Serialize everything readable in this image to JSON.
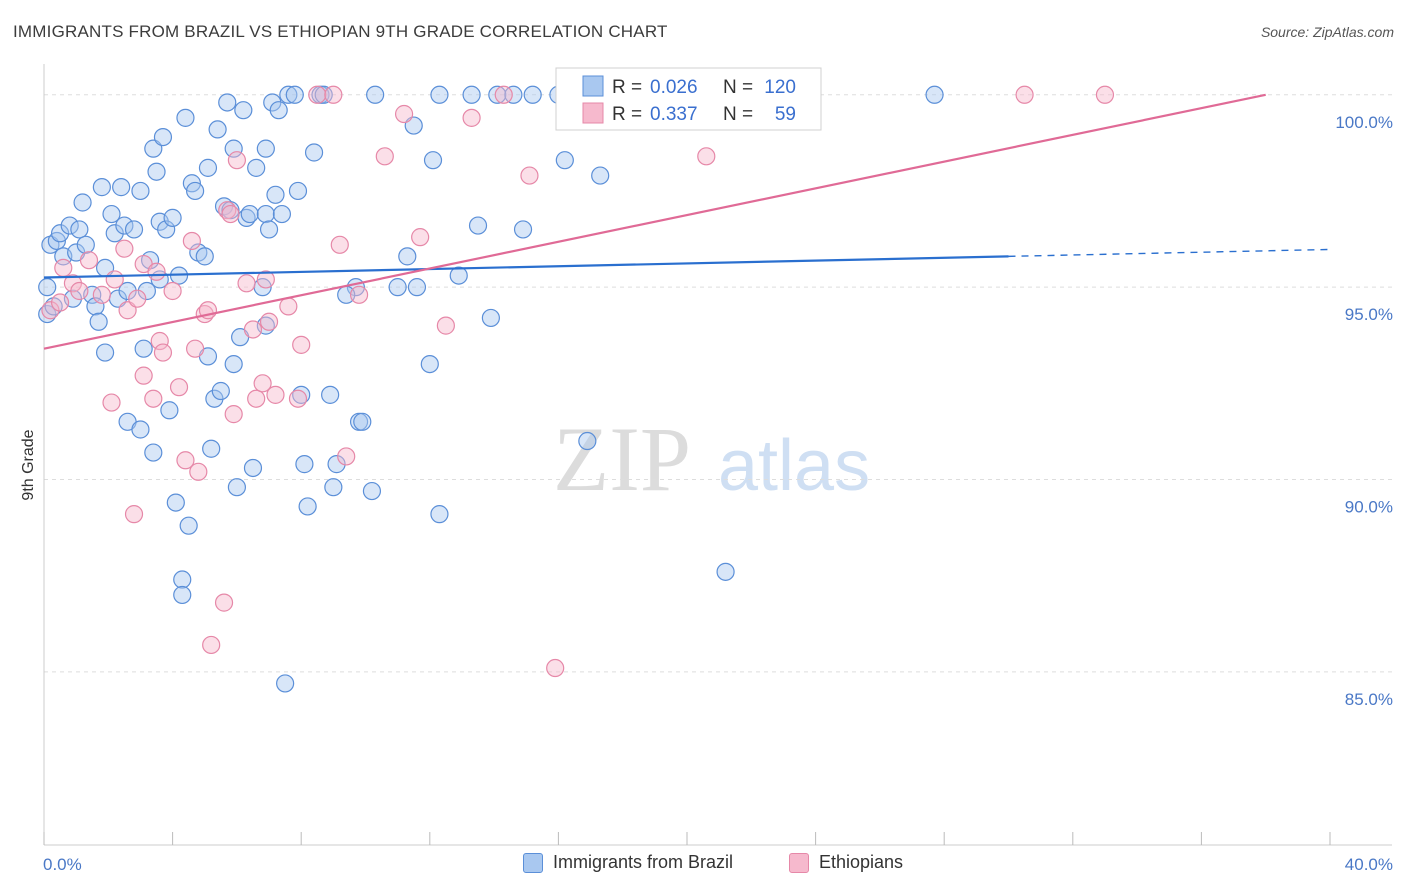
{
  "title": "IMMIGRANTS FROM BRAZIL VS ETHIOPIAN 9TH GRADE CORRELATION CHART",
  "source": "Source: ZipAtlas.com",
  "watermark": {
    "zip": "ZIP",
    "atlas": "atlas"
  },
  "legend_top": {
    "r_label": "R =",
    "n_label": "N =",
    "rows": [
      {
        "r": "0.026",
        "n": "120"
      },
      {
        "r": "0.337",
        "n": "59"
      }
    ]
  },
  "colors": {
    "blue_fill": "#a9c8f0",
    "blue_stroke": "#5b8fd8",
    "blue_line": "#2a6fcf",
    "pink_fill": "#f6b9cd",
    "pink_stroke": "#e688a8",
    "pink_line": "#e06a96",
    "value_text": "#3a6fcf",
    "grid": "#dddddd"
  },
  "chart_data": {
    "type": "scatter",
    "title": "IMMIGRANTS FROM BRAZIL VS ETHIOPIAN 9TH GRADE CORRELATION CHART",
    "xlabel": "",
    "ylabel": "9th Grade",
    "x_range": [
      0,
      40
    ],
    "y_range": [
      80.5,
      100.8
    ],
    "x_tick_labels": [
      "0.0%",
      "40.0%"
    ],
    "y_ticks": [
      85,
      90,
      95,
      100
    ],
    "y_tick_labels": [
      "85.0%",
      "90.0%",
      "95.0%",
      "100.0%"
    ],
    "grid": "horizontal dashed",
    "legend_position": "bottom",
    "series": [
      {
        "name": "Immigrants from Brazil",
        "r": 0.026,
        "n": 120,
        "trend": {
          "x": [
            0,
            30
          ],
          "y": [
            95.25,
            95.8
          ],
          "dashed_to": [
            40,
            95.98
          ]
        },
        "points": [
          [
            0.1,
            95.0
          ],
          [
            0.1,
            94.3
          ],
          [
            0.2,
            96.1
          ],
          [
            0.3,
            94.5
          ],
          [
            0.4,
            96.2
          ],
          [
            0.5,
            96.4
          ],
          [
            0.6,
            95.8
          ],
          [
            0.8,
            96.6
          ],
          [
            0.9,
            94.7
          ],
          [
            1.0,
            95.9
          ],
          [
            1.1,
            96.5
          ],
          [
            1.2,
            97.2
          ],
          [
            1.3,
            96.1
          ],
          [
            1.5,
            94.8
          ],
          [
            1.6,
            94.5
          ],
          [
            1.7,
            94.1
          ],
          [
            1.8,
            97.6
          ],
          [
            1.9,
            95.5
          ],
          [
            1.9,
            93.3
          ],
          [
            2.1,
            96.9
          ],
          [
            2.2,
            96.4
          ],
          [
            2.3,
            94.7
          ],
          [
            2.4,
            97.6
          ],
          [
            2.5,
            96.6
          ],
          [
            2.6,
            94.9
          ],
          [
            2.6,
            91.5
          ],
          [
            2.8,
            96.5
          ],
          [
            3.0,
            97.5
          ],
          [
            3.0,
            91.3
          ],
          [
            3.1,
            93.4
          ],
          [
            3.2,
            94.9
          ],
          [
            3.3,
            95.7
          ],
          [
            3.4,
            98.6
          ],
          [
            3.4,
            90.7
          ],
          [
            3.5,
            98.0
          ],
          [
            3.6,
            96.7
          ],
          [
            3.7,
            98.9
          ],
          [
            3.8,
            96.5
          ],
          [
            3.9,
            91.8
          ],
          [
            4.0,
            96.8
          ],
          [
            4.1,
            89.4
          ],
          [
            4.2,
            95.3
          ],
          [
            4.3,
            87.4
          ],
          [
            4.3,
            87.0
          ],
          [
            4.4,
            99.4
          ],
          [
            4.5,
            88.8
          ],
          [
            4.6,
            97.7
          ],
          [
            4.7,
            97.5
          ],
          [
            4.8,
            95.9
          ],
          [
            5.0,
            95.8
          ],
          [
            5.1,
            98.1
          ],
          [
            5.2,
            90.8
          ],
          [
            5.3,
            92.1
          ],
          [
            5.4,
            99.1
          ],
          [
            5.5,
            92.3
          ],
          [
            5.6,
            97.1
          ],
          [
            5.7,
            99.8
          ],
          [
            5.8,
            97.0
          ],
          [
            5.9,
            98.6
          ],
          [
            5.9,
            93.0
          ],
          [
            6.0,
            89.8
          ],
          [
            6.1,
            93.7
          ],
          [
            6.2,
            99.6
          ],
          [
            6.3,
            96.8
          ],
          [
            6.4,
            96.9
          ],
          [
            6.5,
            90.3
          ],
          [
            6.6,
            98.1
          ],
          [
            6.8,
            95.0
          ],
          [
            6.9,
            96.9
          ],
          [
            6.9,
            98.6
          ],
          [
            7.0,
            96.5
          ],
          [
            7.1,
            99.8
          ],
          [
            7.2,
            97.4
          ],
          [
            7.3,
            99.6
          ],
          [
            7.4,
            96.9
          ],
          [
            7.5,
            84.7
          ],
          [
            7.6,
            100.0
          ],
          [
            7.8,
            100.0
          ],
          [
            7.9,
            97.5
          ],
          [
            8.0,
            92.2
          ],
          [
            8.1,
            90.4
          ],
          [
            8.2,
            89.3
          ],
          [
            8.4,
            98.5
          ],
          [
            8.6,
            100.0
          ],
          [
            8.7,
            100.0
          ],
          [
            8.9,
            92.2
          ],
          [
            9.0,
            89.8
          ],
          [
            9.1,
            90.4
          ],
          [
            9.7,
            95.0
          ],
          [
            9.8,
            91.5
          ],
          [
            9.9,
            91.5
          ],
          [
            10.2,
            89.7
          ],
          [
            10.3,
            100.0
          ],
          [
            11.0,
            95.0
          ],
          [
            11.3,
            95.8
          ],
          [
            11.6,
            95.0
          ],
          [
            12.0,
            93.0
          ],
          [
            12.1,
            98.3
          ],
          [
            12.3,
            89.1
          ],
          [
            12.3,
            100.0
          ],
          [
            12.9,
            95.3
          ],
          [
            13.3,
            100.0
          ],
          [
            13.9,
            94.2
          ],
          [
            14.1,
            100.0
          ],
          [
            14.6,
            100.0
          ],
          [
            14.9,
            96.5
          ],
          [
            15.2,
            100.0
          ],
          [
            16.0,
            100.0
          ],
          [
            16.2,
            98.3
          ],
          [
            16.9,
            91.0
          ],
          [
            17.3,
            97.9
          ],
          [
            21.2,
            87.6
          ],
          [
            27.7,
            100.0
          ],
          [
            18.2,
            100.0
          ],
          [
            11.5,
            99.2
          ],
          [
            6.9,
            94.0
          ],
          [
            13.5,
            96.6
          ],
          [
            3.6,
            95.2
          ],
          [
            5.1,
            93.2
          ],
          [
            9.4,
            94.8
          ]
        ]
      },
      {
        "name": "Ethiopians",
        "r": 0.337,
        "n": 59,
        "trend": {
          "x": [
            0,
            38
          ],
          "y": [
            93.4,
            100.0
          ]
        },
        "points": [
          [
            0.2,
            94.4
          ],
          [
            0.5,
            94.6
          ],
          [
            0.6,
            95.5
          ],
          [
            0.9,
            95.1
          ],
          [
            1.1,
            94.9
          ],
          [
            1.4,
            95.7
          ],
          [
            1.8,
            94.8
          ],
          [
            2.1,
            92.0
          ],
          [
            2.2,
            95.2
          ],
          [
            2.5,
            96.0
          ],
          [
            2.6,
            94.4
          ],
          [
            2.8,
            89.1
          ],
          [
            2.9,
            94.7
          ],
          [
            3.1,
            95.6
          ],
          [
            3.1,
            92.7
          ],
          [
            3.4,
            92.1
          ],
          [
            3.5,
            95.4
          ],
          [
            3.6,
            93.6
          ],
          [
            3.7,
            93.3
          ],
          [
            4.0,
            94.9
          ],
          [
            4.2,
            92.4
          ],
          [
            4.4,
            90.5
          ],
          [
            4.6,
            96.2
          ],
          [
            4.7,
            93.4
          ],
          [
            4.8,
            90.2
          ],
          [
            5.0,
            94.3
          ],
          [
            5.1,
            94.4
          ],
          [
            5.2,
            85.7
          ],
          [
            5.6,
            86.8
          ],
          [
            5.7,
            97.0
          ],
          [
            5.8,
            96.9
          ],
          [
            5.9,
            91.7
          ],
          [
            6.0,
            98.3
          ],
          [
            6.3,
            95.1
          ],
          [
            6.5,
            93.9
          ],
          [
            6.6,
            92.1
          ],
          [
            6.8,
            92.5
          ],
          [
            6.9,
            95.2
          ],
          [
            7.0,
            94.1
          ],
          [
            7.2,
            92.2
          ],
          [
            7.6,
            94.5
          ],
          [
            7.9,
            92.1
          ],
          [
            8.0,
            93.5
          ],
          [
            8.5,
            100.0
          ],
          [
            9.0,
            100.0
          ],
          [
            9.2,
            96.1
          ],
          [
            9.4,
            90.6
          ],
          [
            9.8,
            94.8
          ],
          [
            10.6,
            98.4
          ],
          [
            11.2,
            99.5
          ],
          [
            11.7,
            96.3
          ],
          [
            12.5,
            94.0
          ],
          [
            13.3,
            99.4
          ],
          [
            14.3,
            100.0
          ],
          [
            15.1,
            97.9
          ],
          [
            15.9,
            85.1
          ],
          [
            20.6,
            98.4
          ],
          [
            30.5,
            100.0
          ],
          [
            33.0,
            100.0
          ]
        ]
      }
    ]
  },
  "bottom_legend": [
    {
      "label": "Immigrants from Brazil"
    },
    {
      "label": "Ethiopians"
    }
  ]
}
